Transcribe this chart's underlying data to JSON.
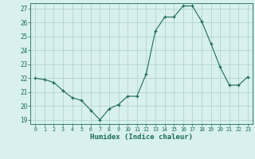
{
  "x": [
    0,
    1,
    2,
    3,
    4,
    5,
    6,
    7,
    8,
    9,
    10,
    11,
    12,
    13,
    14,
    15,
    16,
    17,
    18,
    19,
    20,
    21,
    22,
    23
  ],
  "y": [
    22.0,
    21.9,
    21.7,
    21.1,
    20.6,
    20.4,
    19.7,
    19.0,
    19.8,
    20.1,
    20.7,
    20.7,
    22.3,
    25.4,
    26.4,
    26.4,
    27.2,
    27.2,
    26.1,
    24.5,
    22.8,
    21.5,
    21.5,
    22.1
  ],
  "xlim": [
    -0.5,
    23.5
  ],
  "ylim_min": 18.7,
  "ylim_max": 27.4,
  "yticks": [
    19,
    20,
    21,
    22,
    23,
    24,
    25,
    26,
    27
  ],
  "xticks": [
    0,
    1,
    2,
    3,
    4,
    5,
    6,
    7,
    8,
    9,
    10,
    11,
    12,
    13,
    14,
    15,
    16,
    17,
    18,
    19,
    20,
    21,
    22,
    23
  ],
  "xlabel": "Humidex (Indice chaleur)",
  "line_color": "#1a6b5a",
  "marker_color": "#1a6b5a",
  "bg_color": "#d8f0ee",
  "grid_color": "#aad0cc",
  "tick_color": "#1a6b5a",
  "label_color": "#1a6b5a"
}
